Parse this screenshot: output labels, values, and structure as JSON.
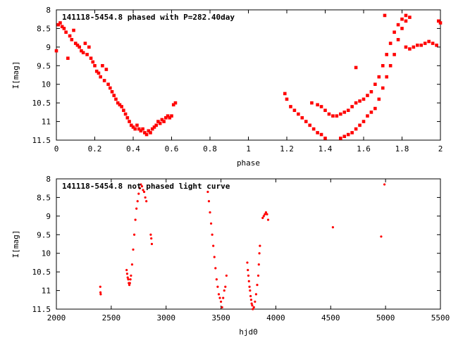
{
  "chart_data": [
    {
      "type": "scatter",
      "title": "141118-5454.8 phased with P=282.40day",
      "xlabel": "phase",
      "ylabel": "I[mag]",
      "xlim": [
        0,
        2
      ],
      "ylim": [
        8,
        11.5
      ],
      "y_inverted": true,
      "grid": false,
      "x_ticks": [
        "0",
        "0.2",
        "0.4",
        "0.6",
        "0.8",
        "1",
        "1.2",
        "1.4",
        "1.6",
        "1.8",
        "2"
      ],
      "y_ticks": [
        "8",
        "8.5",
        "9",
        "9.5",
        "10",
        "10.5",
        "11",
        "11.5"
      ],
      "marker_color": "#ff0000",
      "series": [
        {
          "values": [
            [
              0.0,
              9.1
            ],
            [
              0.01,
              8.4
            ],
            [
              0.02,
              8.35
            ],
            [
              0.03,
              8.45
            ],
            [
              0.04,
              8.5
            ],
            [
              0.05,
              8.6
            ],
            [
              0.06,
              9.3
            ],
            [
              0.07,
              8.7
            ],
            [
              0.08,
              8.8
            ],
            [
              0.09,
              8.55
            ],
            [
              0.1,
              8.9
            ],
            [
              0.11,
              8.95
            ],
            [
              0.12,
              9.0
            ],
            [
              0.13,
              9.1
            ],
            [
              0.14,
              9.15
            ],
            [
              0.15,
              8.9
            ],
            [
              0.16,
              9.2
            ],
            [
              0.17,
              9.0
            ],
            [
              0.18,
              9.3
            ],
            [
              0.19,
              9.4
            ],
            [
              0.2,
              9.5
            ],
            [
              0.21,
              9.65
            ],
            [
              0.22,
              9.7
            ],
            [
              0.23,
              9.8
            ],
            [
              0.24,
              9.5
            ],
            [
              0.25,
              9.9
            ],
            [
              0.26,
              9.6
            ],
            [
              0.27,
              10.0
            ],
            [
              0.28,
              10.1
            ],
            [
              0.29,
              10.2
            ],
            [
              0.3,
              10.3
            ],
            [
              0.31,
              10.4
            ],
            [
              0.32,
              10.5
            ],
            [
              0.33,
              10.55
            ],
            [
              0.34,
              10.6
            ],
            [
              0.35,
              10.7
            ],
            [
              0.36,
              10.8
            ],
            [
              0.37,
              10.9
            ],
            [
              0.38,
              11.0
            ],
            [
              0.39,
              11.1
            ],
            [
              0.4,
              11.15
            ],
            [
              0.41,
              11.2
            ],
            [
              0.42,
              11.1
            ],
            [
              0.43,
              11.2
            ],
            [
              0.44,
              11.25
            ],
            [
              0.45,
              11.2
            ],
            [
              0.46,
              11.3
            ],
            [
              0.47,
              11.35
            ],
            [
              0.48,
              11.25
            ],
            [
              0.49,
              11.3
            ],
            [
              0.5,
              11.2
            ],
            [
              0.51,
              11.15
            ],
            [
              0.52,
              11.1
            ],
            [
              0.53,
              11.0
            ],
            [
              0.54,
              11.05
            ],
            [
              0.55,
              10.95
            ],
            [
              0.56,
              11.0
            ],
            [
              0.57,
              10.9
            ],
            [
              0.58,
              10.85
            ],
            [
              0.59,
              10.9
            ],
            [
              0.6,
              10.85
            ],
            [
              0.61,
              10.55
            ],
            [
              0.62,
              10.5
            ],
            [
              1.19,
              10.25
            ],
            [
              1.2,
              10.4
            ],
            [
              1.22,
              10.6
            ],
            [
              1.24,
              10.7
            ],
            [
              1.26,
              10.8
            ],
            [
              1.28,
              10.9
            ],
            [
              1.3,
              11.0
            ],
            [
              1.32,
              11.1
            ],
            [
              1.34,
              11.2
            ],
            [
              1.36,
              11.3
            ],
            [
              1.38,
              11.35
            ],
            [
              1.4,
              11.45
            ],
            [
              1.33,
              10.5
            ],
            [
              1.36,
              10.55
            ],
            [
              1.38,
              10.6
            ],
            [
              1.4,
              10.7
            ],
            [
              1.42,
              10.8
            ],
            [
              1.44,
              10.85
            ],
            [
              1.46,
              10.85
            ],
            [
              1.48,
              10.8
            ],
            [
              1.5,
              10.75
            ],
            [
              1.52,
              10.7
            ],
            [
              1.54,
              10.6
            ],
            [
              1.56,
              10.5
            ],
            [
              1.58,
              10.45
            ],
            [
              1.6,
              10.4
            ],
            [
              1.62,
              10.3
            ],
            [
              1.64,
              10.2
            ],
            [
              1.66,
              10.0
            ],
            [
              1.68,
              9.8
            ],
            [
              1.7,
              9.5
            ],
            [
              1.72,
              9.2
            ],
            [
              1.74,
              8.9
            ],
            [
              1.76,
              8.6
            ],
            [
              1.78,
              8.4
            ],
            [
              1.8,
              8.25
            ],
            [
              1.82,
              8.15
            ],
            [
              1.48,
              11.45
            ],
            [
              1.5,
              11.4
            ],
            [
              1.52,
              11.35
            ],
            [
              1.54,
              11.3
            ],
            [
              1.56,
              11.2
            ],
            [
              1.58,
              11.1
            ],
            [
              1.6,
              11.0
            ],
            [
              1.62,
              10.85
            ],
            [
              1.64,
              10.75
            ],
            [
              1.66,
              10.65
            ],
            [
              1.68,
              10.4
            ],
            [
              1.7,
              10.1
            ],
            [
              1.72,
              9.8
            ],
            [
              1.74,
              9.5
            ],
            [
              1.76,
              9.2
            ],
            [
              1.78,
              8.8
            ],
            [
              1.8,
              8.5
            ],
            [
              1.82,
              8.3
            ],
            [
              1.84,
              8.2
            ],
            [
              1.56,
              9.55
            ],
            [
              1.71,
              8.15
            ],
            [
              1.82,
              9.0
            ],
            [
              1.84,
              9.05
            ],
            [
              1.86,
              9.0
            ],
            [
              1.88,
              8.95
            ],
            [
              1.9,
              8.95
            ],
            [
              1.92,
              8.9
            ],
            [
              1.94,
              8.85
            ],
            [
              1.96,
              8.9
            ],
            [
              1.98,
              8.95
            ],
            [
              1.99,
              8.3
            ],
            [
              2.0,
              8.35
            ]
          ]
        }
      ]
    },
    {
      "type": "scatter",
      "title": "141118-5454.8 not phased light curve",
      "xlabel": "hjd0",
      "ylabel": "I[mag]",
      "xlim": [
        2000,
        5500
      ],
      "ylim": [
        8,
        11.5
      ],
      "y_inverted": true,
      "grid": false,
      "x_ticks": [
        "2000",
        "2500",
        "3000",
        "3500",
        "4000",
        "4500",
        "5000",
        "5500"
      ],
      "y_ticks": [
        "8",
        "8.5",
        "9",
        "9.5",
        "10",
        "10.5",
        "11",
        "11.5"
      ],
      "marker_color": "#ff0000",
      "series": [
        {
          "values": [
            [
              2400,
              10.9
            ],
            [
              2402,
              11.05
            ],
            [
              2404,
              11.1
            ],
            [
              2640,
              10.45
            ],
            [
              2645,
              10.55
            ],
            [
              2650,
              10.65
            ],
            [
              2655,
              10.7
            ],
            [
              2660,
              10.8
            ],
            [
              2665,
              10.85
            ],
            [
              2670,
              10.8
            ],
            [
              2675,
              10.7
            ],
            [
              2680,
              10.6
            ],
            [
              2690,
              10.3
            ],
            [
              2700,
              9.9
            ],
            [
              2710,
              9.5
            ],
            [
              2720,
              9.1
            ],
            [
              2730,
              8.8
            ],
            [
              2740,
              8.6
            ],
            [
              2750,
              8.4
            ],
            [
              2760,
              8.25
            ],
            [
              2770,
              8.15
            ],
            [
              2780,
              8.2
            ],
            [
              2790,
              8.3
            ],
            [
              2800,
              8.35
            ],
            [
              2810,
              8.5
            ],
            [
              2820,
              8.6
            ],
            [
              2860,
              9.5
            ],
            [
              2865,
              9.6
            ],
            [
              2870,
              9.75
            ],
            [
              3380,
              8.35
            ],
            [
              3390,
              8.6
            ],
            [
              3400,
              8.9
            ],
            [
              3410,
              9.2
            ],
            [
              3420,
              9.5
            ],
            [
              3430,
              9.8
            ],
            [
              3440,
              10.1
            ],
            [
              3450,
              10.4
            ],
            [
              3460,
              10.7
            ],
            [
              3470,
              10.9
            ],
            [
              3480,
              11.1
            ],
            [
              3490,
              11.2
            ],
            [
              3500,
              11.3
            ],
            [
              3510,
              11.45
            ],
            [
              3520,
              11.2
            ],
            [
              3530,
              11.0
            ],
            [
              3540,
              10.9
            ],
            [
              3550,
              10.6
            ],
            [
              3740,
              10.25
            ],
            [
              3745,
              10.45
            ],
            [
              3750,
              10.6
            ],
            [
              3755,
              10.75
            ],
            [
              3760,
              10.9
            ],
            [
              3765,
              11.0
            ],
            [
              3770,
              11.15
            ],
            [
              3775,
              11.25
            ],
            [
              3780,
              11.35
            ],
            [
              3785,
              11.4
            ],
            [
              3790,
              11.5
            ],
            [
              3800,
              11.45
            ],
            [
              3810,
              11.3
            ],
            [
              3820,
              11.1
            ],
            [
              3830,
              10.85
            ],
            [
              3840,
              10.6
            ],
            [
              3845,
              10.3
            ],
            [
              3850,
              10.0
            ],
            [
              3855,
              9.8
            ],
            [
              3880,
              9.05
            ],
            [
              3890,
              9.0
            ],
            [
              3900,
              8.95
            ],
            [
              3910,
              8.9
            ],
            [
              3920,
              8.95
            ],
            [
              3930,
              9.1
            ],
            [
              4520,
              9.3
            ],
            [
              4960,
              9.55
            ],
            [
              4990,
              8.15
            ]
          ]
        }
      ]
    }
  ]
}
